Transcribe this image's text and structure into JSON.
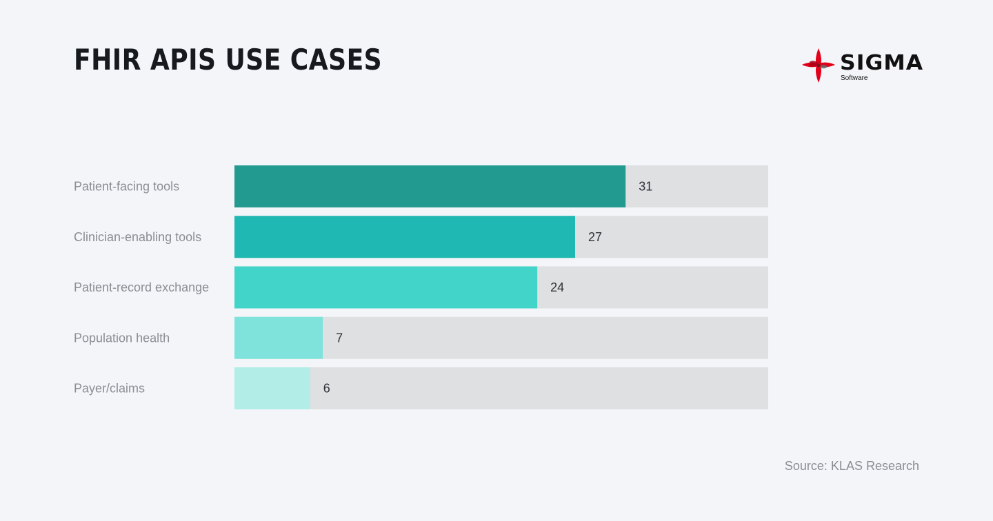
{
  "title": "FHIR APIS USE CASES",
  "brand": {
    "name": "SIGMA",
    "sub": "Software"
  },
  "source": "Source: KLAS Research",
  "colors": {
    "background": "#f3f5f8",
    "track": "#dfe0e2",
    "logo_red": "#e3001b"
  },
  "chart_data": {
    "type": "bar",
    "orientation": "horizontal",
    "title": "FHIR APIS USE CASES",
    "categories": [
      "Patient-facing tools",
      "Clinician-enabling tools",
      "Patient-record exchange",
      "Population health",
      "Payer/claims"
    ],
    "values": [
      31,
      27,
      24,
      7,
      6
    ],
    "value_labels": [
      "31",
      "27",
      "24",
      "7",
      "6"
    ],
    "colors": [
      "#239a90",
      "#20b8b2",
      "#42d4c9",
      "#80e3db",
      "#b2ede8"
    ],
    "xlim": [
      0,
      42.3
    ],
    "xlabel": "",
    "ylabel": "",
    "grid": false
  }
}
